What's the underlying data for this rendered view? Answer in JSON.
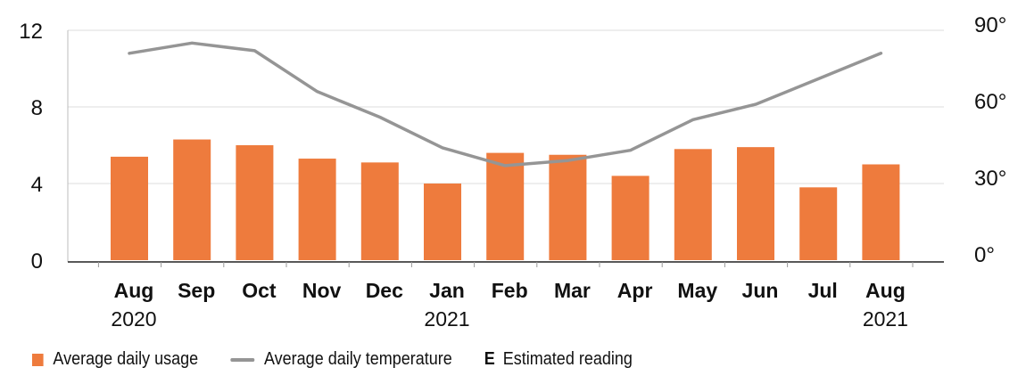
{
  "chart_data": {
    "type": "bar",
    "categories": [
      "Aug",
      "Sep",
      "Oct",
      "Nov",
      "Dec",
      "Jan",
      "Feb",
      "Mar",
      "Apr",
      "May",
      "Jun",
      "Jul",
      "Aug"
    ],
    "category_years": [
      "2020",
      "",
      "",
      "",
      "",
      "2021",
      "",
      "",
      "",
      "",
      "",
      "",
      "2021"
    ],
    "series": [
      {
        "name": "Average daily usage",
        "type": "bar",
        "axis": "left",
        "color": "#ee7b3d",
        "values": [
          5.4,
          6.3,
          6.0,
          5.3,
          5.1,
          4.0,
          5.6,
          5.5,
          4.4,
          5.8,
          5.9,
          3.8,
          5.0
        ]
      },
      {
        "name": "Average daily temperature",
        "type": "line",
        "axis": "right",
        "color": "#959595",
        "values": [
          81,
          85,
          82,
          66,
          56,
          44,
          37,
          39,
          43,
          55,
          61,
          71,
          81
        ]
      }
    ],
    "y_left": {
      "ticks": [
        "0",
        "4",
        "8",
        "12"
      ],
      "tick_values": [
        0,
        4,
        8,
        12
      ],
      "ylim": [
        0,
        12
      ]
    },
    "y_right": {
      "ticks": [
        "0°",
        "30°",
        "60°",
        "90°"
      ],
      "tick_values": [
        0,
        30,
        60,
        90
      ],
      "ylim": [
        0,
        90
      ]
    },
    "grid": true,
    "legend_position": "bottom-left"
  },
  "legend": {
    "usage_label": "Average daily usage",
    "temperature_label": "Average daily temperature",
    "estimated_symbol": "E",
    "estimated_label": "Estimated reading"
  }
}
